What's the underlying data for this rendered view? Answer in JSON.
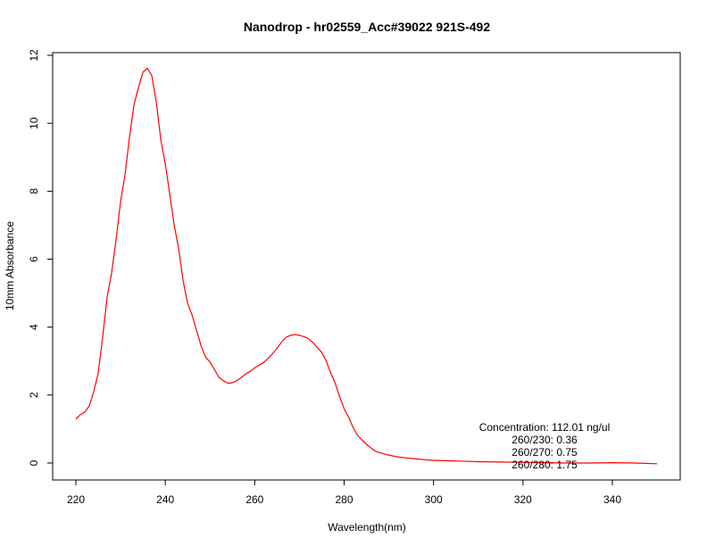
{
  "chart_data": {
    "type": "line",
    "title": "Nanodrop - hr02559_Acc#39022 921S-492",
    "xlabel": "Wavelength(nm)",
    "ylabel": "10mm Absorbance",
    "xlim": [
      220,
      350
    ],
    "ylim": [
      0,
      12
    ],
    "xticks": [
      220,
      240,
      260,
      280,
      300,
      320,
      340
    ],
    "yticks": [
      0,
      2,
      4,
      6,
      8,
      10,
      12
    ],
    "grid": false,
    "series": [
      {
        "color": "#ff0000",
        "x": [
          220,
          221,
          222,
          223,
          224,
          225,
          226,
          227,
          228,
          229,
          230,
          231,
          232,
          233,
          234,
          235,
          236,
          237,
          238,
          239,
          240,
          241,
          242,
          243,
          244,
          245,
          246,
          247,
          248,
          249,
          250,
          251,
          252,
          253,
          254,
          255,
          256,
          257,
          258,
          259,
          260,
          261,
          262,
          263,
          264,
          265,
          266,
          267,
          268,
          269,
          270,
          271,
          272,
          273,
          274,
          275,
          276,
          277,
          278,
          279,
          280,
          281,
          282,
          283,
          284,
          285,
          286,
          287,
          288,
          290,
          292,
          294,
          296,
          298,
          300,
          305,
          310,
          315,
          320,
          325,
          330,
          335,
          340,
          345,
          350
        ],
        "y": [
          1.3,
          1.42,
          1.5,
          1.68,
          2.1,
          2.65,
          3.7,
          4.9,
          5.6,
          6.6,
          7.7,
          8.5,
          9.6,
          10.55,
          11.05,
          11.5,
          11.62,
          11.4,
          10.6,
          9.5,
          8.8,
          7.9,
          7.0,
          6.3,
          5.35,
          4.7,
          4.35,
          3.9,
          3.45,
          3.12,
          2.97,
          2.75,
          2.52,
          2.42,
          2.35,
          2.36,
          2.42,
          2.52,
          2.62,
          2.7,
          2.8,
          2.88,
          2.96,
          3.08,
          3.22,
          3.38,
          3.56,
          3.7,
          3.76,
          3.78,
          3.76,
          3.72,
          3.66,
          3.55,
          3.4,
          3.25,
          3.0,
          2.65,
          2.35,
          1.95,
          1.6,
          1.35,
          1.05,
          0.82,
          0.68,
          0.55,
          0.44,
          0.35,
          0.3,
          0.23,
          0.18,
          0.15,
          0.12,
          0.1,
          0.08,
          0.06,
          0.04,
          0.03,
          0.02,
          0.01,
          0.0,
          0.0,
          0.01,
          0.0,
          -0.02
        ]
      }
    ],
    "annotation": {
      "lines": [
        "Concentration: 112.01 ng/ul",
        "260/230: 0.36",
        "260/270: 0.75",
        "260/280: 1.75"
      ],
      "position": "bottom-right"
    }
  }
}
